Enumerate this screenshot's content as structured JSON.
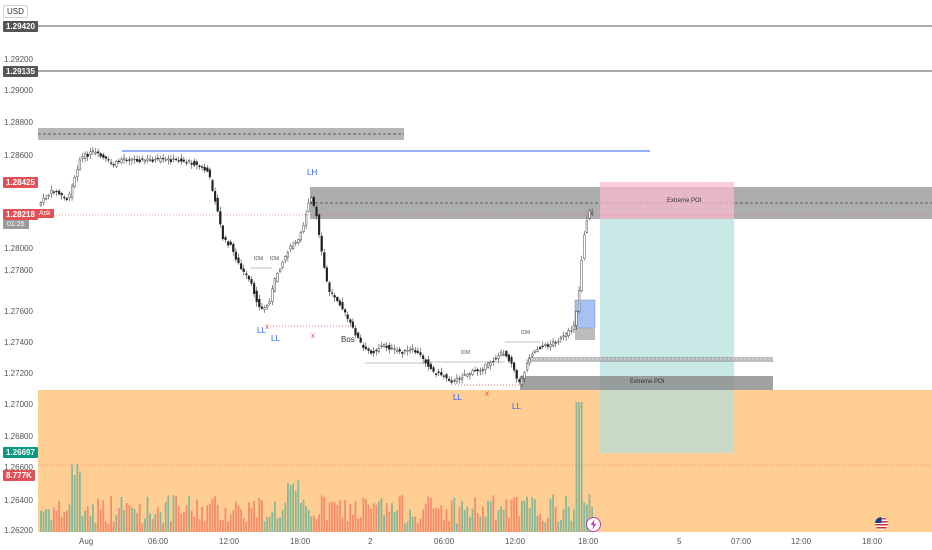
{
  "currency": "USD",
  "price_axis": {
    "labels": [
      "1.29200",
      "1.29000",
      "1.28800",
      "1.28600",
      "1.28000",
      "1.27800",
      "1.27600",
      "1.27400",
      "1.27200",
      "1.27000",
      "1.26800",
      "1.26600",
      "1.26400",
      "1.26200"
    ],
    "badges": {
      "top_line_1": "1.29420",
      "top_line_2": "1.29135",
      "last_price": "1.28425",
      "ask": "1.28218",
      "ask_label": "Ask",
      "timer": "01:25",
      "volume_ma": "1.26697",
      "volume": "8.777K"
    }
  },
  "time_axis": [
    "Aug",
    "06:00",
    "12:00",
    "18:00",
    "2",
    "06:00",
    "12:00",
    "18:00",
    "5",
    "07:00",
    "12:00",
    "18:00"
  ],
  "annotations": {
    "extreme_poi_upper": "Extreme POI",
    "extreme_poi_lower": "Extreme POI",
    "lh": "LH",
    "ll_1": "LL",
    "ll_2": "LL",
    "ll_3": "LL",
    "ll_4": "LL",
    "idm_1": "IDM",
    "idm_2": "IDM",
    "idm_3": "IDM",
    "idm_4": "IDM",
    "bos": "Bos",
    "x_1": "x",
    "x_2": "x",
    "x_3": "x"
  },
  "colors": {
    "bull": "#26a69a",
    "bear": "#ef5350",
    "badge_dark": "#555555",
    "badge_red": "#e15057",
    "badge_green": "#089981",
    "orange_zone": "#ffc680",
    "poi_zone": "#9e9e9e",
    "blue_line": "#2962ff",
    "profit_zone": "#b2dfdb",
    "loss_zone": "#f8bbd0"
  },
  "icons": {
    "lightning": "lightning-icon",
    "flag": "us-flag-icon"
  }
}
